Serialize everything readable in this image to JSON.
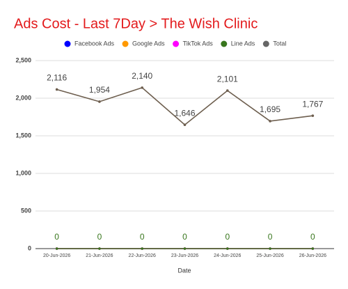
{
  "chart_data": {
    "type": "line",
    "title": "Ads Cost - Last 7Day > The Wish Clinic",
    "x_label": "Date",
    "categories": [
      "20-Jun-2026",
      "21-Jun-2026",
      "22-Jun-2026",
      "23-Jun-2026",
      "24-Jun-2026",
      "25-Jun-2026",
      "26-Jun-2026"
    ],
    "series": [
      {
        "name": "Facebook Ads",
        "color": "#0000ff",
        "values": [
          0,
          0,
          0,
          0,
          0,
          0,
          0
        ]
      },
      {
        "name": "Google Ads",
        "color": "#ff9900",
        "values": [
          0,
          0,
          0,
          0,
          0,
          0,
          0
        ]
      },
      {
        "name": "TikTok Ads",
        "color": "#ff00ff",
        "values": [
          0,
          0,
          0,
          0,
          0,
          0,
          0
        ]
      },
      {
        "name": "Line Ads",
        "color": "#38761d",
        "values": [
          0,
          0,
          0,
          0,
          0,
          0,
          0
        ],
        "labels": true
      },
      {
        "name": "Total",
        "color": "#6d5e4e",
        "values": [
          2116,
          1954,
          2140,
          1646,
          2101,
          1695,
          1767
        ],
        "value_labels": [
          "2,116",
          "1,954",
          "2,140",
          "1,646",
          "2,101",
          "1,695",
          "1,767"
        ],
        "labels": true
      }
    ],
    "ylim": [
      0,
      2500
    ],
    "yticks": [
      0,
      500,
      {
        "value": 1000,
        "label": "1,000"
      },
      {
        "value": 1500,
        "label": "1,500"
      },
      {
        "value": 2000,
        "label": "2,000"
      },
      {
        "value": 2500,
        "label": "2,500"
      }
    ],
    "grid": true
  }
}
